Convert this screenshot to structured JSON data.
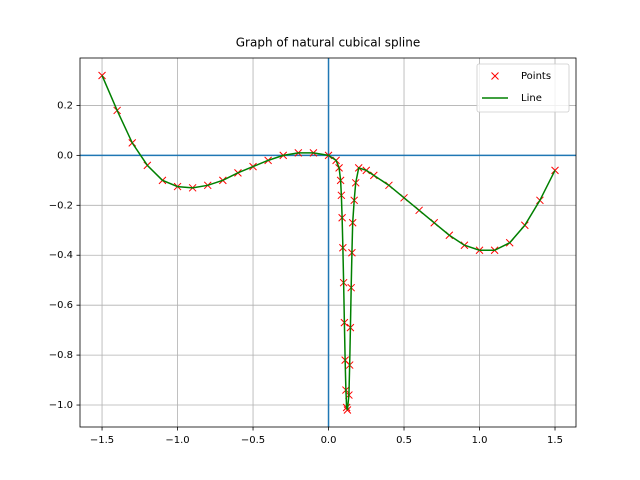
{
  "chart_data": {
    "type": "line",
    "title": "Graph of natural cubical spline",
    "x": [
      -1.5,
      -1.4,
      -1.3,
      -1.2,
      -1.1,
      -1.0,
      -0.9,
      -0.8,
      -0.7,
      -0.6,
      -0.5,
      -0.4,
      -0.3,
      -0.2,
      -0.1,
      0.0,
      0.05,
      0.07,
      0.08,
      0.085,
      0.09,
      0.095,
      0.1,
      0.105,
      0.11,
      0.115,
      0.12,
      0.125,
      0.135,
      0.14,
      0.145,
      0.15,
      0.155,
      0.16,
      0.17,
      0.18,
      0.2,
      0.25,
      0.3,
      0.4,
      0.5,
      0.6,
      0.7,
      0.8,
      0.9,
      1.0,
      1.1,
      1.2,
      1.3,
      1.4,
      1.5
    ],
    "series": [
      {
        "name": "Points",
        "marker": "x",
        "color": "#ff0000",
        "values": [
          0.32,
          0.18,
          0.05,
          -0.04,
          -0.1,
          -0.125,
          -0.13,
          -0.12,
          -0.1,
          -0.07,
          -0.045,
          -0.02,
          0.0,
          0.01,
          0.01,
          0.0,
          -0.02,
          -0.05,
          -0.1,
          -0.16,
          -0.25,
          -0.37,
          -0.51,
          -0.67,
          -0.82,
          -0.94,
          -1.01,
          -1.02,
          -0.96,
          -0.84,
          -0.69,
          -0.53,
          -0.39,
          -0.27,
          -0.18,
          -0.11,
          -0.05,
          -0.06,
          -0.08,
          -0.12,
          -0.17,
          -0.22,
          -0.27,
          -0.32,
          -0.36,
          -0.38,
          -0.38,
          -0.35,
          -0.28,
          -0.18,
          -0.06
        ]
      },
      {
        "name": "Line",
        "marker": "line",
        "color": "#008000",
        "values": [
          0.32,
          0.18,
          0.05,
          -0.04,
          -0.1,
          -0.125,
          -0.13,
          -0.12,
          -0.1,
          -0.07,
          -0.045,
          -0.02,
          0.0,
          0.01,
          0.01,
          0.0,
          -0.02,
          -0.05,
          -0.1,
          -0.16,
          -0.25,
          -0.37,
          -0.51,
          -0.67,
          -0.82,
          -0.94,
          -1.01,
          -1.02,
          -0.96,
          -0.84,
          -0.69,
          -0.53,
          -0.39,
          -0.27,
          -0.18,
          -0.11,
          -0.05,
          -0.06,
          -0.08,
          -0.12,
          -0.17,
          -0.22,
          -0.27,
          -0.32,
          -0.36,
          -0.38,
          -0.38,
          -0.35,
          -0.28,
          -0.18,
          -0.06
        ]
      }
    ],
    "reference_lines": {
      "x": 0,
      "y": 0,
      "color": "#1f77b4"
    },
    "xlim": [
      -1.646,
      1.639
    ],
    "ylim": [
      -1.088,
      0.39
    ],
    "xticks": [
      {
        "value": -1.5,
        "label": "−1.5"
      },
      {
        "value": -1.0,
        "label": "−1.0"
      },
      {
        "value": -0.5,
        "label": "−0.5"
      },
      {
        "value": 0.0,
        "label": "0.0"
      },
      {
        "value": 0.5,
        "label": "0.5"
      },
      {
        "value": 1.0,
        "label": "1.0"
      },
      {
        "value": 1.5,
        "label": "1.5"
      }
    ],
    "yticks": [
      {
        "value": -1.0,
        "label": "−1.0"
      },
      {
        "value": -0.8,
        "label": "−0.8"
      },
      {
        "value": -0.6,
        "label": "−0.6"
      },
      {
        "value": -0.4,
        "label": "−0.4"
      },
      {
        "value": -0.2,
        "label": "−0.2"
      },
      {
        "value": 0.0,
        "label": "0.0"
      },
      {
        "value": 0.2,
        "label": "0.2"
      }
    ],
    "grid": true,
    "legend": "upper right"
  }
}
